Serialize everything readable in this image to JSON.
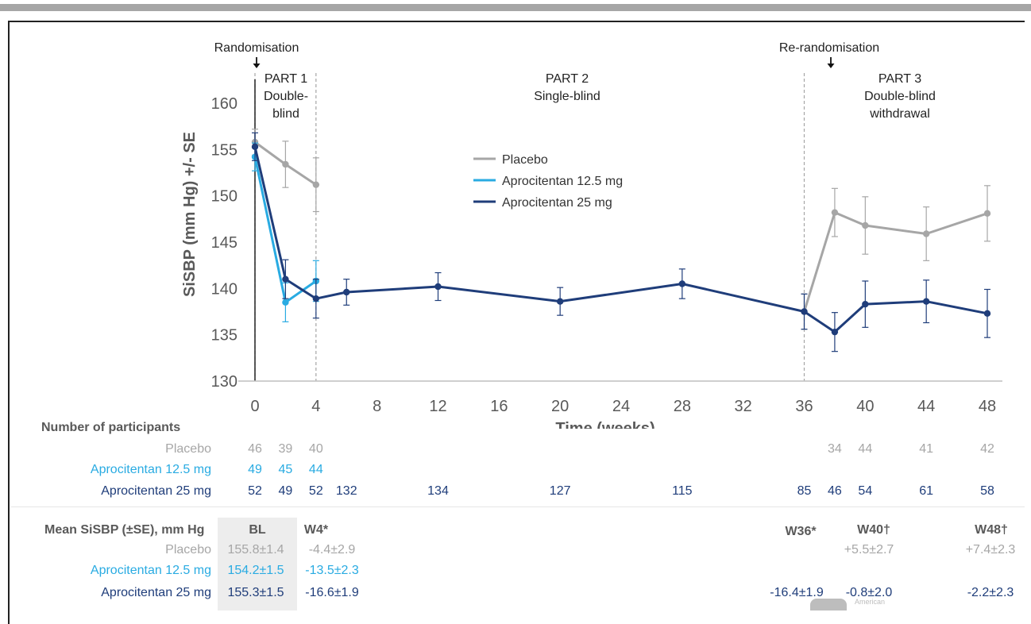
{
  "colors": {
    "placebo": "#a6a6a6",
    "apro125": "#29abe2",
    "apro25": "#1f3d7a",
    "axis": "#595959",
    "label": "#595959"
  },
  "chart_data": {
    "type": "line",
    "xlabel": "Time (weeks)",
    "ylabel": "SiSBP (mm Hg) +/- SE",
    "xlim": [
      0,
      48
    ],
    "ylim": [
      130,
      160
    ],
    "xticks": [
      "0",
      "4",
      "8",
      "12",
      "16",
      "20",
      "24",
      "28",
      "32",
      "36",
      "40",
      "44",
      "48"
    ],
    "yticks": [
      "130",
      "135",
      "140",
      "145",
      "150",
      "155",
      "160"
    ],
    "legend_position": "top-center",
    "annotations": [
      {
        "text": "Randomisation",
        "x": 0
      },
      {
        "text": "Re-randomisation",
        "x": 38
      }
    ],
    "phases": [
      {
        "lines": [
          "PART 1",
          "Double-",
          "blind"
        ],
        "x": 2
      },
      {
        "lines": [
          "PART 2",
          "Single-blind"
        ],
        "x": 20
      },
      {
        "lines": [
          "PART 3",
          "Double-blind",
          "withdrawal"
        ],
        "x": 42
      }
    ],
    "vlines": [
      0,
      4,
      36
    ],
    "series": [
      {
        "name": "Placebo",
        "color": "#a6a6a6",
        "segments": [
          {
            "x": [
              0,
              2,
              4
            ],
            "y": [
              155.8,
              153.4,
              151.2
            ],
            "se": [
              1.4,
              2.5,
              2.9
            ]
          },
          {
            "x": [
              36,
              38,
              40,
              44,
              48
            ],
            "y": [
              137.5,
              148.2,
              146.8,
              145.9,
              148.1
            ],
            "se": [
              1.9,
              2.6,
              3.1,
              2.9,
              3.0
            ]
          }
        ]
      },
      {
        "name": "Aprocitentan 12.5 mg",
        "color": "#29abe2",
        "segments": [
          {
            "x": [
              0,
              2,
              4
            ],
            "y": [
              154.2,
              138.5,
              140.8
            ],
            "se": [
              1.5,
              2.1,
              2.2
            ]
          }
        ]
      },
      {
        "name": "Aprocitentan 25 mg",
        "color": "#1f3d7a",
        "segments": [
          {
            "x": [
              0,
              2,
              4,
              6,
              12,
              20,
              28,
              36,
              38,
              40,
              44,
              48
            ],
            "y": [
              155.3,
              141.0,
              138.9,
              139.6,
              140.2,
              138.6,
              140.5,
              137.5,
              135.3,
              138.3,
              138.6,
              137.3
            ],
            "se": [
              1.5,
              2.1,
              2.1,
              1.4,
              1.5,
              1.5,
              1.6,
              1.9,
              2.1,
              2.5,
              2.3,
              2.6
            ]
          }
        ]
      }
    ]
  },
  "participants": {
    "title": "Number of participants",
    "rows": [
      {
        "label": "Placebo",
        "key": "placebo",
        "cells": [
          {
            "x": 0,
            "v": "46"
          },
          {
            "x": 2,
            "v": "39"
          },
          {
            "x": 4,
            "v": "40"
          },
          {
            "x": 38,
            "v": "34"
          },
          {
            "x": 40,
            "v": "44"
          },
          {
            "x": 44,
            "v": "41"
          },
          {
            "x": 48,
            "v": "42"
          }
        ]
      },
      {
        "label": "Aprocitentan 12.5 mg",
        "key": "apro125",
        "cells": [
          {
            "x": 0,
            "v": "49"
          },
          {
            "x": 2,
            "v": "45"
          },
          {
            "x": 4,
            "v": "44"
          }
        ]
      },
      {
        "label": "Aprocitentan 25 mg",
        "key": "apro25",
        "cells": [
          {
            "x": 0,
            "v": "52"
          },
          {
            "x": 2,
            "v": "49"
          },
          {
            "x": 4,
            "v": "52"
          },
          {
            "x": 6,
            "v": "132"
          },
          {
            "x": 12,
            "v": "134"
          },
          {
            "x": 20,
            "v": "127"
          },
          {
            "x": 28,
            "v": "115"
          },
          {
            "x": 36,
            "v": "85"
          },
          {
            "x": 38,
            "v": "46"
          },
          {
            "x": 40,
            "v": "54"
          },
          {
            "x": 44,
            "v": "61"
          },
          {
            "x": 48,
            "v": "58"
          }
        ]
      }
    ]
  },
  "mean_table": {
    "title": "Mean SiSBP (±SE), mm Hg",
    "headers": {
      "bl": "BL",
      "w4": "W4*",
      "w36": "W36*",
      "w40": "W40†",
      "w48": "W48†"
    },
    "rows": [
      {
        "label": "Placebo",
        "key": "placebo",
        "bl": "155.8±1.4",
        "w4": "-4.4±2.9",
        "w36": "",
        "w40": "+5.5±2.7",
        "w48": "+7.4±2.3"
      },
      {
        "label": "Aprocitentan 12.5 mg",
        "key": "apro125",
        "bl": "154.2±1.5",
        "w4": "-13.5±2.3",
        "w36": "",
        "w40": "",
        "w48": ""
      },
      {
        "label": "Aprocitentan 25 mg",
        "key": "apro25",
        "bl": "155.3±1.5",
        "w4": "-16.6±1.9",
        "w36": "-16.4±1.9",
        "w40": "-0.8±2.0",
        "w48": "-2.2±2.3"
      }
    ]
  },
  "watermark": {
    "text": "American"
  }
}
